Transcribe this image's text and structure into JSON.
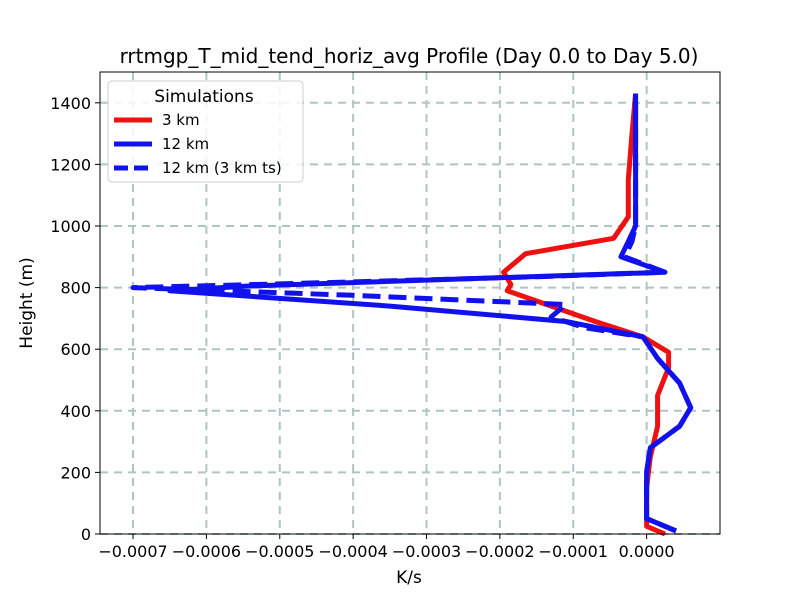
{
  "chart_data": {
    "type": "line",
    "title": "rrtmgp_T_mid_tend_horiz_avg Profile (Day 0.0 to Day 5.0)",
    "xlabel": "K/s",
    "ylabel": "Height (m)",
    "xlim": [
      -0.000745,
      0.0001
    ],
    "ylim": [
      0,
      1500
    ],
    "grid": true,
    "x_ticks": [
      -0.0007,
      -0.0006,
      -0.0005,
      -0.0004,
      -0.0003,
      -0.0002,
      -0.0001,
      0.0
    ],
    "x_tick_labels": [
      "−0.0007",
      "−0.0006",
      "−0.0005",
      "−0.0004",
      "−0.0003",
      "−0.0002",
      "−0.0001",
      "0.0000"
    ],
    "y_ticks": [
      0,
      200,
      400,
      600,
      800,
      1000,
      1200,
      1400
    ],
    "y_tick_labels": [
      "0",
      "200",
      "400",
      "600",
      "800",
      "1000",
      "1200",
      "1400"
    ],
    "legend": {
      "title": "Simulations",
      "position": "upper-left"
    },
    "series": [
      {
        "name": "3 km",
        "color": "#ee1111",
        "dash": "solid",
        "points": [
          [
            2.5e-05,
            0
          ],
          [
            0.0,
            25
          ],
          [
            0.0,
            60
          ],
          [
            0.0,
            150
          ],
          [
            5e-06,
            250
          ],
          [
            1.5e-05,
            350
          ],
          [
            1.5e-05,
            450
          ],
          [
            3e-05,
            540
          ],
          [
            3e-05,
            590
          ],
          [
            -5e-06,
            640
          ],
          [
            -7e-05,
            690
          ],
          [
            -0.00013,
            740
          ],
          [
            -0.00019,
            790
          ],
          [
            -0.000185,
            810
          ],
          [
            -0.000195,
            850
          ],
          [
            -0.000165,
            910
          ],
          [
            -4.5e-05,
            960
          ],
          [
            -2.5e-05,
            1030
          ],
          [
            -2.5e-05,
            1150
          ],
          [
            -2e-05,
            1300
          ],
          [
            -1.5e-05,
            1430
          ]
        ]
      },
      {
        "name": "12 km",
        "color": "#1111ee",
        "dash": "solid",
        "points": [
          [
            4e-05,
            10
          ],
          [
            0.0,
            50
          ],
          [
            0.0,
            200
          ],
          [
            5e-06,
            280
          ],
          [
            4.5e-05,
            350
          ],
          [
            6e-05,
            410
          ],
          [
            4.5e-05,
            490
          ],
          [
            1.5e-05,
            570
          ],
          [
            -5e-06,
            640
          ],
          [
            -0.00011,
            690
          ],
          [
            -0.00035,
            740
          ],
          [
            -0.00065,
            790
          ],
          [
            -0.000545,
            805
          ],
          [
            -0.0001,
            840
          ],
          [
            2.5e-05,
            850
          ],
          [
            -3.5e-05,
            900
          ],
          [
            -2.5e-05,
            950
          ],
          [
            -1.5e-05,
            1000
          ],
          [
            -1.5e-05,
            1200
          ],
          [
            -1.5e-05,
            1430
          ]
        ]
      },
      {
        "name": "12 km (3 km ts)",
        "color": "#1111ee",
        "dash": "dashed",
        "points": [
          [
            4e-05,
            10
          ],
          [
            0.0,
            50
          ],
          [
            0.0,
            200
          ],
          [
            5e-06,
            280
          ],
          [
            4.5e-05,
            350
          ],
          [
            6e-05,
            410
          ],
          [
            4.5e-05,
            490
          ],
          [
            1.5e-05,
            570
          ],
          [
            -5e-06,
            640
          ],
          [
            -8.5e-05,
            670
          ],
          [
            -0.00013,
            705
          ],
          [
            -0.00011,
            745
          ],
          [
            -0.0004,
            775
          ],
          [
            -0.0007,
            800
          ],
          [
            -0.0005,
            812
          ],
          [
            -0.00015,
            835
          ],
          [
            2.5e-05,
            850
          ],
          [
            -3e-05,
            900
          ],
          [
            -2e-05,
            950
          ],
          [
            -1.5e-05,
            1000
          ],
          [
            -1.5e-05,
            1200
          ],
          [
            -1.5e-05,
            1430
          ]
        ]
      }
    ]
  }
}
